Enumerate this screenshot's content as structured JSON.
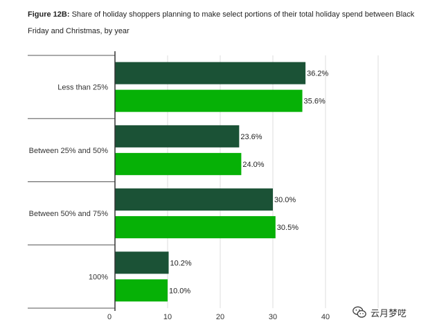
{
  "title_prefix": "Figure 12B:",
  "title_text": "Share of holiday shoppers planning to make select portions of their total holiday spend between Black Friday and Christmas, by year",
  "watermark_text": "云月梦呓",
  "colors": {
    "series_dark": "#1b5236",
    "series_light": "#06b106",
    "axis": "#333333",
    "grid": "#dddddd"
  },
  "chart_data": {
    "type": "bar",
    "orientation": "horizontal",
    "categories": [
      "Less than 25%",
      "Between 25% and 50%",
      "Between 50% and 75%",
      "100%"
    ],
    "series": [
      {
        "values": [
          36.2,
          23.6,
          30.0,
          10.2
        ],
        "color": "#1b5236"
      },
      {
        "values": [
          35.6,
          24.0,
          30.5,
          10.0
        ],
        "color": "#06b106"
      }
    ],
    "data_labels": [
      [
        "36.2%",
        "23.6%",
        "30.0%",
        "10.2%"
      ],
      [
        "35.6%",
        "24.0%",
        "30.5%",
        "10.0%"
      ]
    ],
    "x_ticks": [
      0,
      10,
      20,
      30,
      40,
      50,
      60
    ],
    "x_tick_labels": [
      "0",
      "10",
      "20",
      "30",
      "40",
      "",
      ""
    ],
    "xlim": [
      0,
      60
    ],
    "grid": true,
    "legend": "none"
  }
}
